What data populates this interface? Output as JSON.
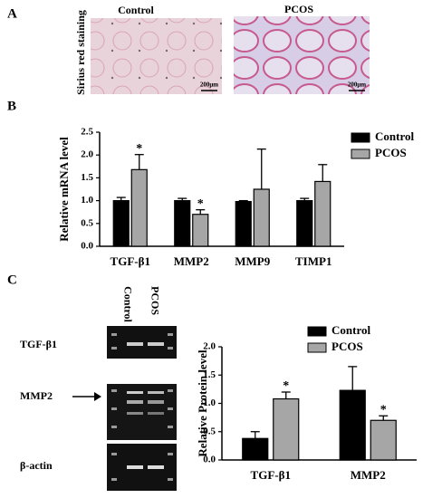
{
  "panels": {
    "a": {
      "label": "A",
      "stain_label": "Sirius red staining",
      "images": [
        {
          "title": "Control",
          "scale": "200μm"
        },
        {
          "title": "PCOS",
          "scale": "200μm"
        }
      ]
    },
    "b": {
      "label": "B"
    },
    "c": {
      "label": "C",
      "lanes": [
        "Control",
        "PCOS"
      ],
      "blots": [
        "TGF-β1",
        "MMP2",
        "β-actin"
      ]
    }
  },
  "chart_data": [
    {
      "type": "bar",
      "y_label": "Relative mRNA level",
      "categories": [
        "TGF-β1",
        "MMP2",
        "MMP9",
        "TIMP1"
      ],
      "series": [
        {
          "name": "Control",
          "color": "#000000",
          "values": [
            1.0,
            1.0,
            0.98,
            1.0
          ],
          "errors": [
            0.07,
            0.05,
            0.02,
            0.05
          ]
        },
        {
          "name": "PCOS",
          "color": "#a6a6a6",
          "values": [
            1.68,
            0.7,
            1.25,
            1.42
          ],
          "errors": [
            0.33,
            0.1,
            0.88,
            0.37
          ],
          "markers": [
            "*",
            "*",
            null,
            null
          ]
        }
      ],
      "ylim": [
        0,
        2.5
      ],
      "yticks": [
        {
          "value": 0,
          "label": "0.0"
        },
        0.5,
        {
          "value": 1,
          "label": "1.0"
        },
        1.5,
        {
          "value": 2,
          "label": "2.0"
        },
        2.5
      ]
    },
    {
      "type": "bar",
      "y_label": "Relative Protein level",
      "categories": [
        "TGF-β1",
        "MMP2"
      ],
      "series": [
        {
          "name": "Control",
          "color": "#000000",
          "values": [
            0.38,
            1.23
          ],
          "errors": [
            0.12,
            0.42
          ]
        },
        {
          "name": "PCOS",
          "color": "#a6a6a6",
          "values": [
            1.08,
            0.7
          ],
          "errors": [
            0.12,
            0.08
          ],
          "markers": [
            "*",
            "*"
          ]
        }
      ],
      "ylim": [
        0,
        2
      ],
      "yticks": [
        {
          "value": 0,
          "label": "0.0"
        },
        0.5,
        {
          "value": 1,
          "label": "1.0"
        },
        1.5,
        {
          "value": 2,
          "label": "2.0"
        }
      ]
    }
  ]
}
